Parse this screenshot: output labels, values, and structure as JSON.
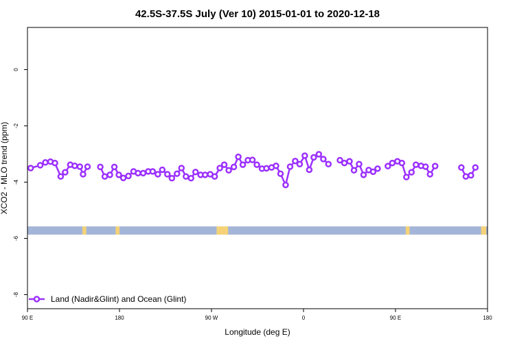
{
  "chart_data": {
    "type": "line",
    "title": "42.5S-37.5S July (Ver 10)   2015-01-01 to 2020-12-18",
    "xlabel": "Longitude (deg E)",
    "ylabel": "XCO2 - MLO trend (ppm)",
    "xlim": [
      90,
      450
    ],
    "ylim": [
      -8.5,
      1.5
    ],
    "x_ticks": [
      {
        "value": 90,
        "label": "90 E"
      },
      {
        "value": 162,
        "label": "180"
      },
      {
        "value": 234,
        "label": "90 W"
      },
      {
        "value": 306,
        "label": "0"
      },
      {
        "value": 378,
        "label": "90 E"
      },
      {
        "value": 450,
        "label": "180"
      }
    ],
    "y_ticks": [
      {
        "value": 0,
        "label": "0"
      },
      {
        "value": -2,
        "label": "-2"
      },
      {
        "value": -4,
        "label": "-4"
      },
      {
        "value": -6,
        "label": "-6"
      },
      {
        "value": -8,
        "label": "-8"
      }
    ],
    "grid": false,
    "legend": {
      "position": "bottom-left"
    },
    "series": [
      {
        "name": "Land (Nadir&Glint) and Ocean (Glint)",
        "color": "#9b30ff",
        "segments": [
          [
            [
              92.5,
              -3.5
            ],
            [
              100,
              -3.4
            ],
            [
              104,
              -3.3
            ],
            [
              108,
              -3.27
            ],
            [
              111.5,
              -3.32
            ],
            [
              116,
              -3.8
            ],
            [
              119.5,
              -3.65
            ],
            [
              123.5,
              -3.38
            ],
            [
              127,
              -3.42
            ],
            [
              131,
              -3.45
            ],
            [
              133.5,
              -3.72
            ],
            [
              137,
              -3.45
            ]
          ],
          [
            [
              147,
              -3.46
            ],
            [
              150.5,
              -3.8
            ],
            [
              154.5,
              -3.74
            ],
            [
              158,
              -3.46
            ],
            [
              161.5,
              -3.74
            ],
            [
              165,
              -3.85
            ],
            [
              169,
              -3.78
            ],
            [
              173,
              -3.62
            ],
            [
              176.5,
              -3.68
            ],
            [
              180.5,
              -3.68
            ],
            [
              184.5,
              -3.62
            ],
            [
              188,
              -3.62
            ],
            [
              192,
              -3.72
            ],
            [
              195.5,
              -3.56
            ],
            [
              199.5,
              -3.72
            ],
            [
              203,
              -3.86
            ],
            [
              207,
              -3.7
            ],
            [
              210.5,
              -3.5
            ],
            [
              214,
              -3.8
            ],
            [
              218,
              -3.86
            ],
            [
              221.5,
              -3.64
            ],
            [
              225.5,
              -3.74
            ],
            [
              229,
              -3.74
            ],
            [
              233,
              -3.72
            ],
            [
              236.5,
              -3.8
            ],
            [
              240.5,
              -3.5
            ],
            [
              244,
              -3.38
            ],
            [
              247.5,
              -3.58
            ],
            [
              251.5,
              -3.46
            ],
            [
              255,
              -3.1
            ],
            [
              258.5,
              -3.38
            ],
            [
              262.5,
              -3.22
            ],
            [
              266,
              -3.21
            ],
            [
              269.5,
              -3.38
            ],
            [
              273.5,
              -3.52
            ],
            [
              277,
              -3.51
            ],
            [
              281,
              -3.48
            ],
            [
              284.5,
              -3.42
            ],
            [
              288,
              -3.7
            ],
            [
              292,
              -4.1
            ],
            [
              295.5,
              -3.45
            ],
            [
              299.5,
              -3.25
            ],
            [
              303,
              -3.36
            ],
            [
              307,
              -3.06
            ],
            [
              310.5,
              -3.56
            ],
            [
              314,
              -3.12
            ],
            [
              318,
              -3.01
            ],
            [
              321.5,
              -3.18
            ],
            [
              325.5,
              -3.36
            ]
          ],
          [
            [
              334.5,
              -3.22
            ],
            [
              338,
              -3.32
            ],
            [
              342,
              -3.26
            ],
            [
              345.5,
              -3.58
            ],
            [
              349.5,
              -3.36
            ],
            [
              353,
              -3.74
            ],
            [
              357,
              -3.57
            ],
            [
              360.5,
              -3.63
            ],
            [
              364,
              -3.52
            ]
          ],
          [
            [
              372,
              -3.43
            ],
            [
              375.5,
              -3.32
            ],
            [
              379.5,
              -3.26
            ],
            [
              383,
              -3.32
            ],
            [
              386.5,
              -3.82
            ],
            [
              390.5,
              -3.65
            ],
            [
              394,
              -3.38
            ],
            [
              398,
              -3.42
            ],
            [
              401.5,
              -3.45
            ],
            [
              405,
              -3.72
            ],
            [
              409,
              -3.43
            ]
          ],
          [
            [
              429.5,
              -3.48
            ],
            [
              433,
              -3.8
            ],
            [
              437,
              -3.76
            ],
            [
              440.5,
              -3.48
            ]
          ]
        ]
      }
    ],
    "surface_bar": {
      "y": -5.72,
      "land_color": "#f5d277",
      "ocean_color": "#a4b6d8",
      "land_ranges": [
        [
          133,
          136
        ],
        [
          159,
          162
        ],
        [
          238,
          247
        ],
        [
          386,
          389
        ],
        [
          445,
          449
        ]
      ]
    }
  }
}
